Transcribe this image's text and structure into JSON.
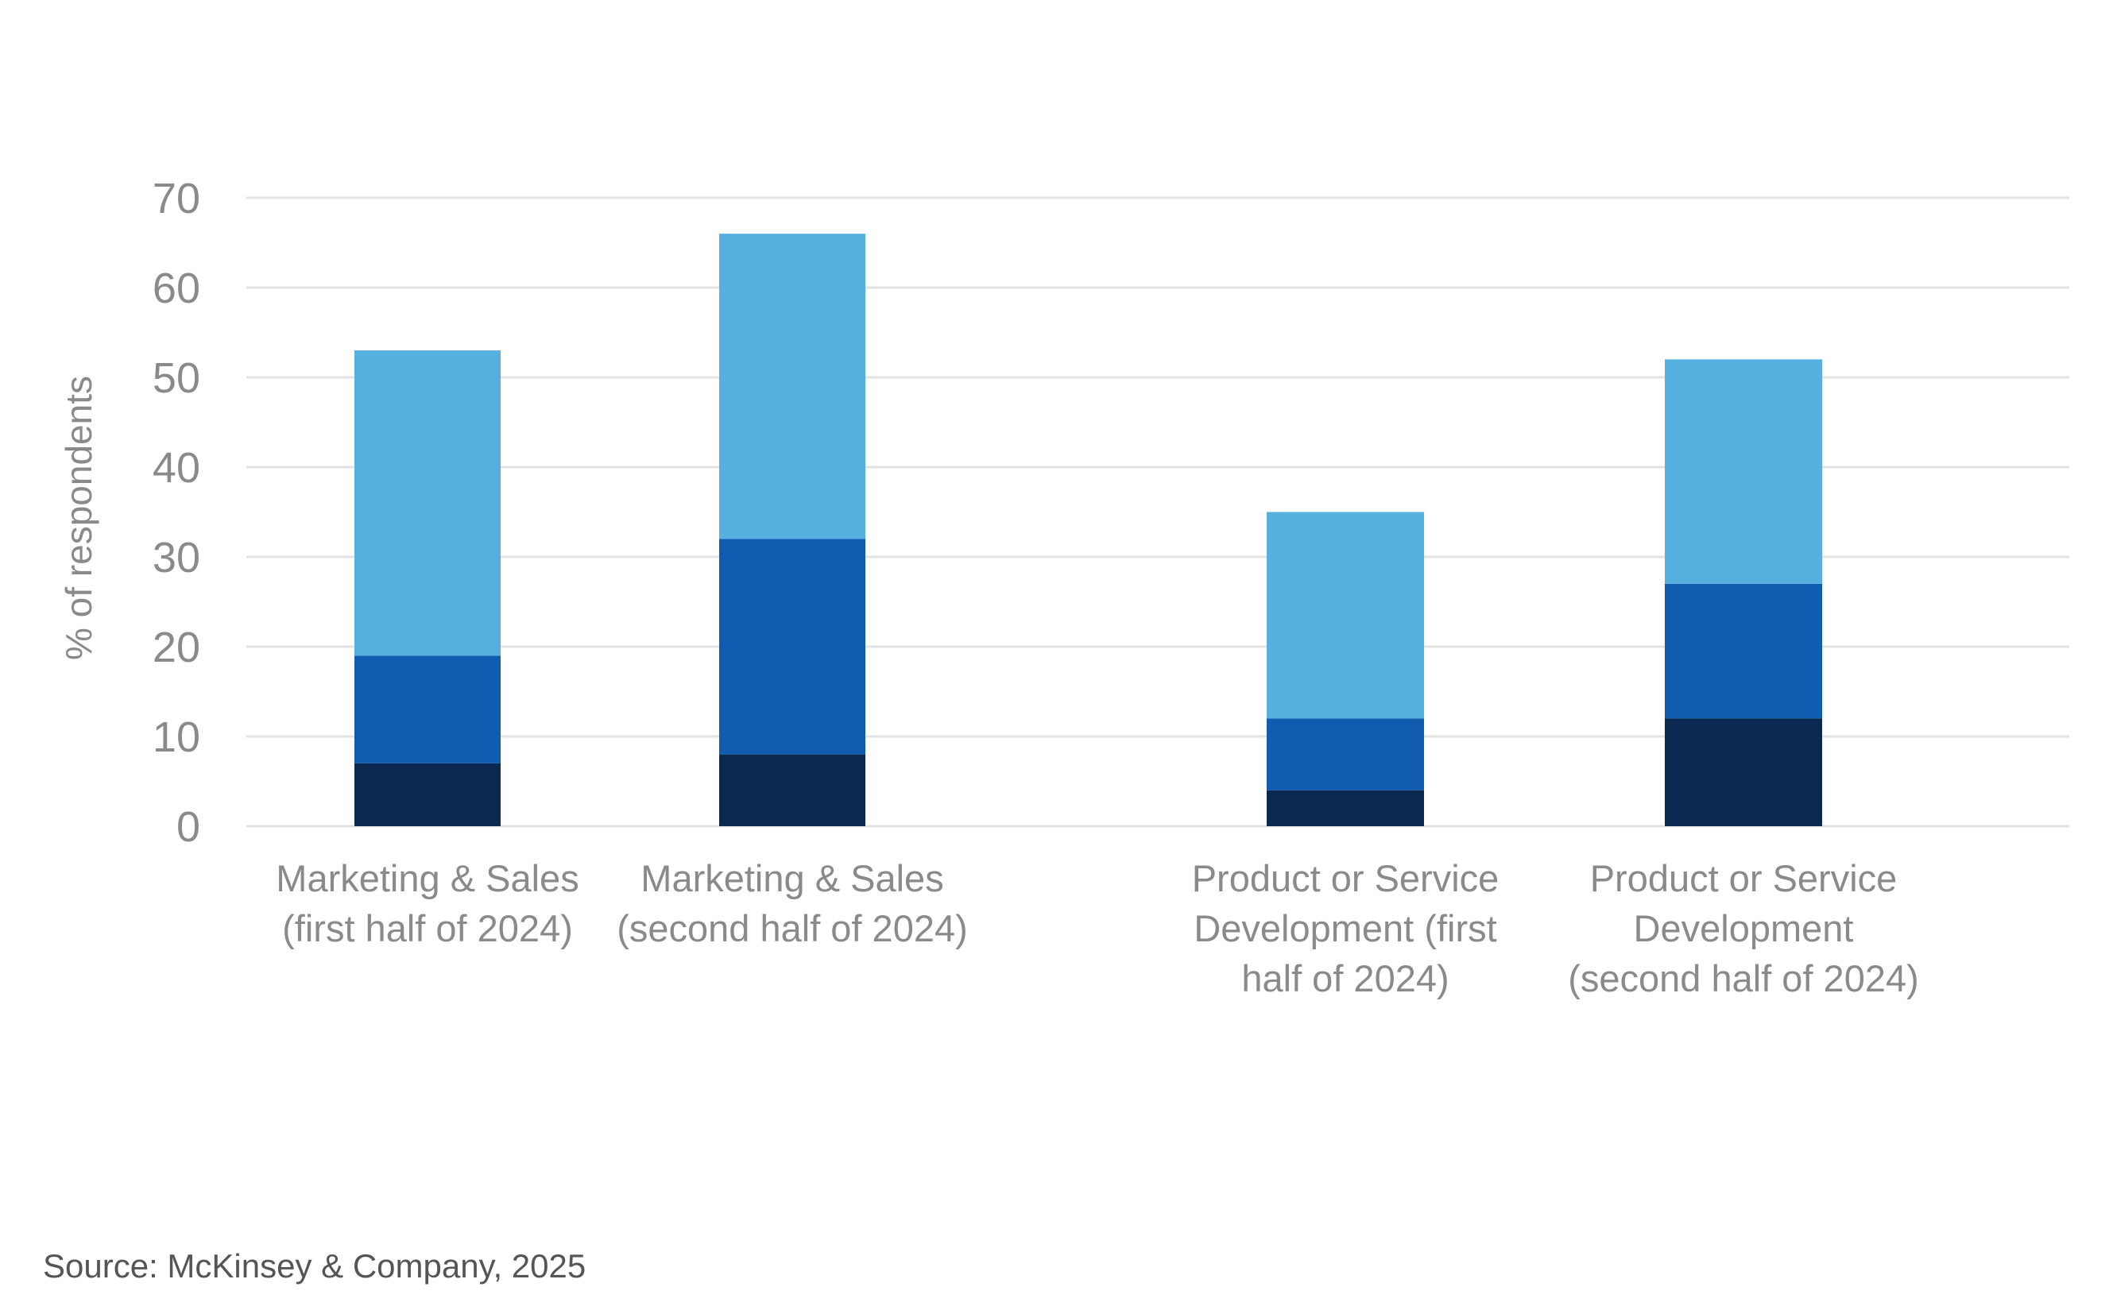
{
  "chart_data": {
    "type": "bar",
    "stacked": true,
    "title": "",
    "xlabel": "",
    "ylabel": "% of respondents",
    "ylim": [
      0,
      70
    ],
    "yticks": [
      0,
      10,
      20,
      30,
      40,
      50,
      60,
      70
    ],
    "grid": true,
    "legend": "none",
    "categories": [
      [
        "Marketing & Sales",
        "(first half of 2024)"
      ],
      [
        "Marketing & Sales",
        "(second half of 2024)"
      ],
      [
        "Product or Service",
        "Development (first",
        "half of 2024)"
      ],
      [
        "Product or Service",
        "Development",
        "(second half of 2024)"
      ]
    ],
    "series": [
      {
        "color": "#0a2850",
        "values": [
          7,
          8,
          4,
          12
        ]
      },
      {
        "color": "#115cb0",
        "values": [
          12,
          24,
          8,
          15
        ]
      },
      {
        "color": "#55afdf",
        "values": [
          34,
          34,
          23,
          25
        ]
      }
    ],
    "source": "Source: McKinsey & Company, 2025"
  }
}
